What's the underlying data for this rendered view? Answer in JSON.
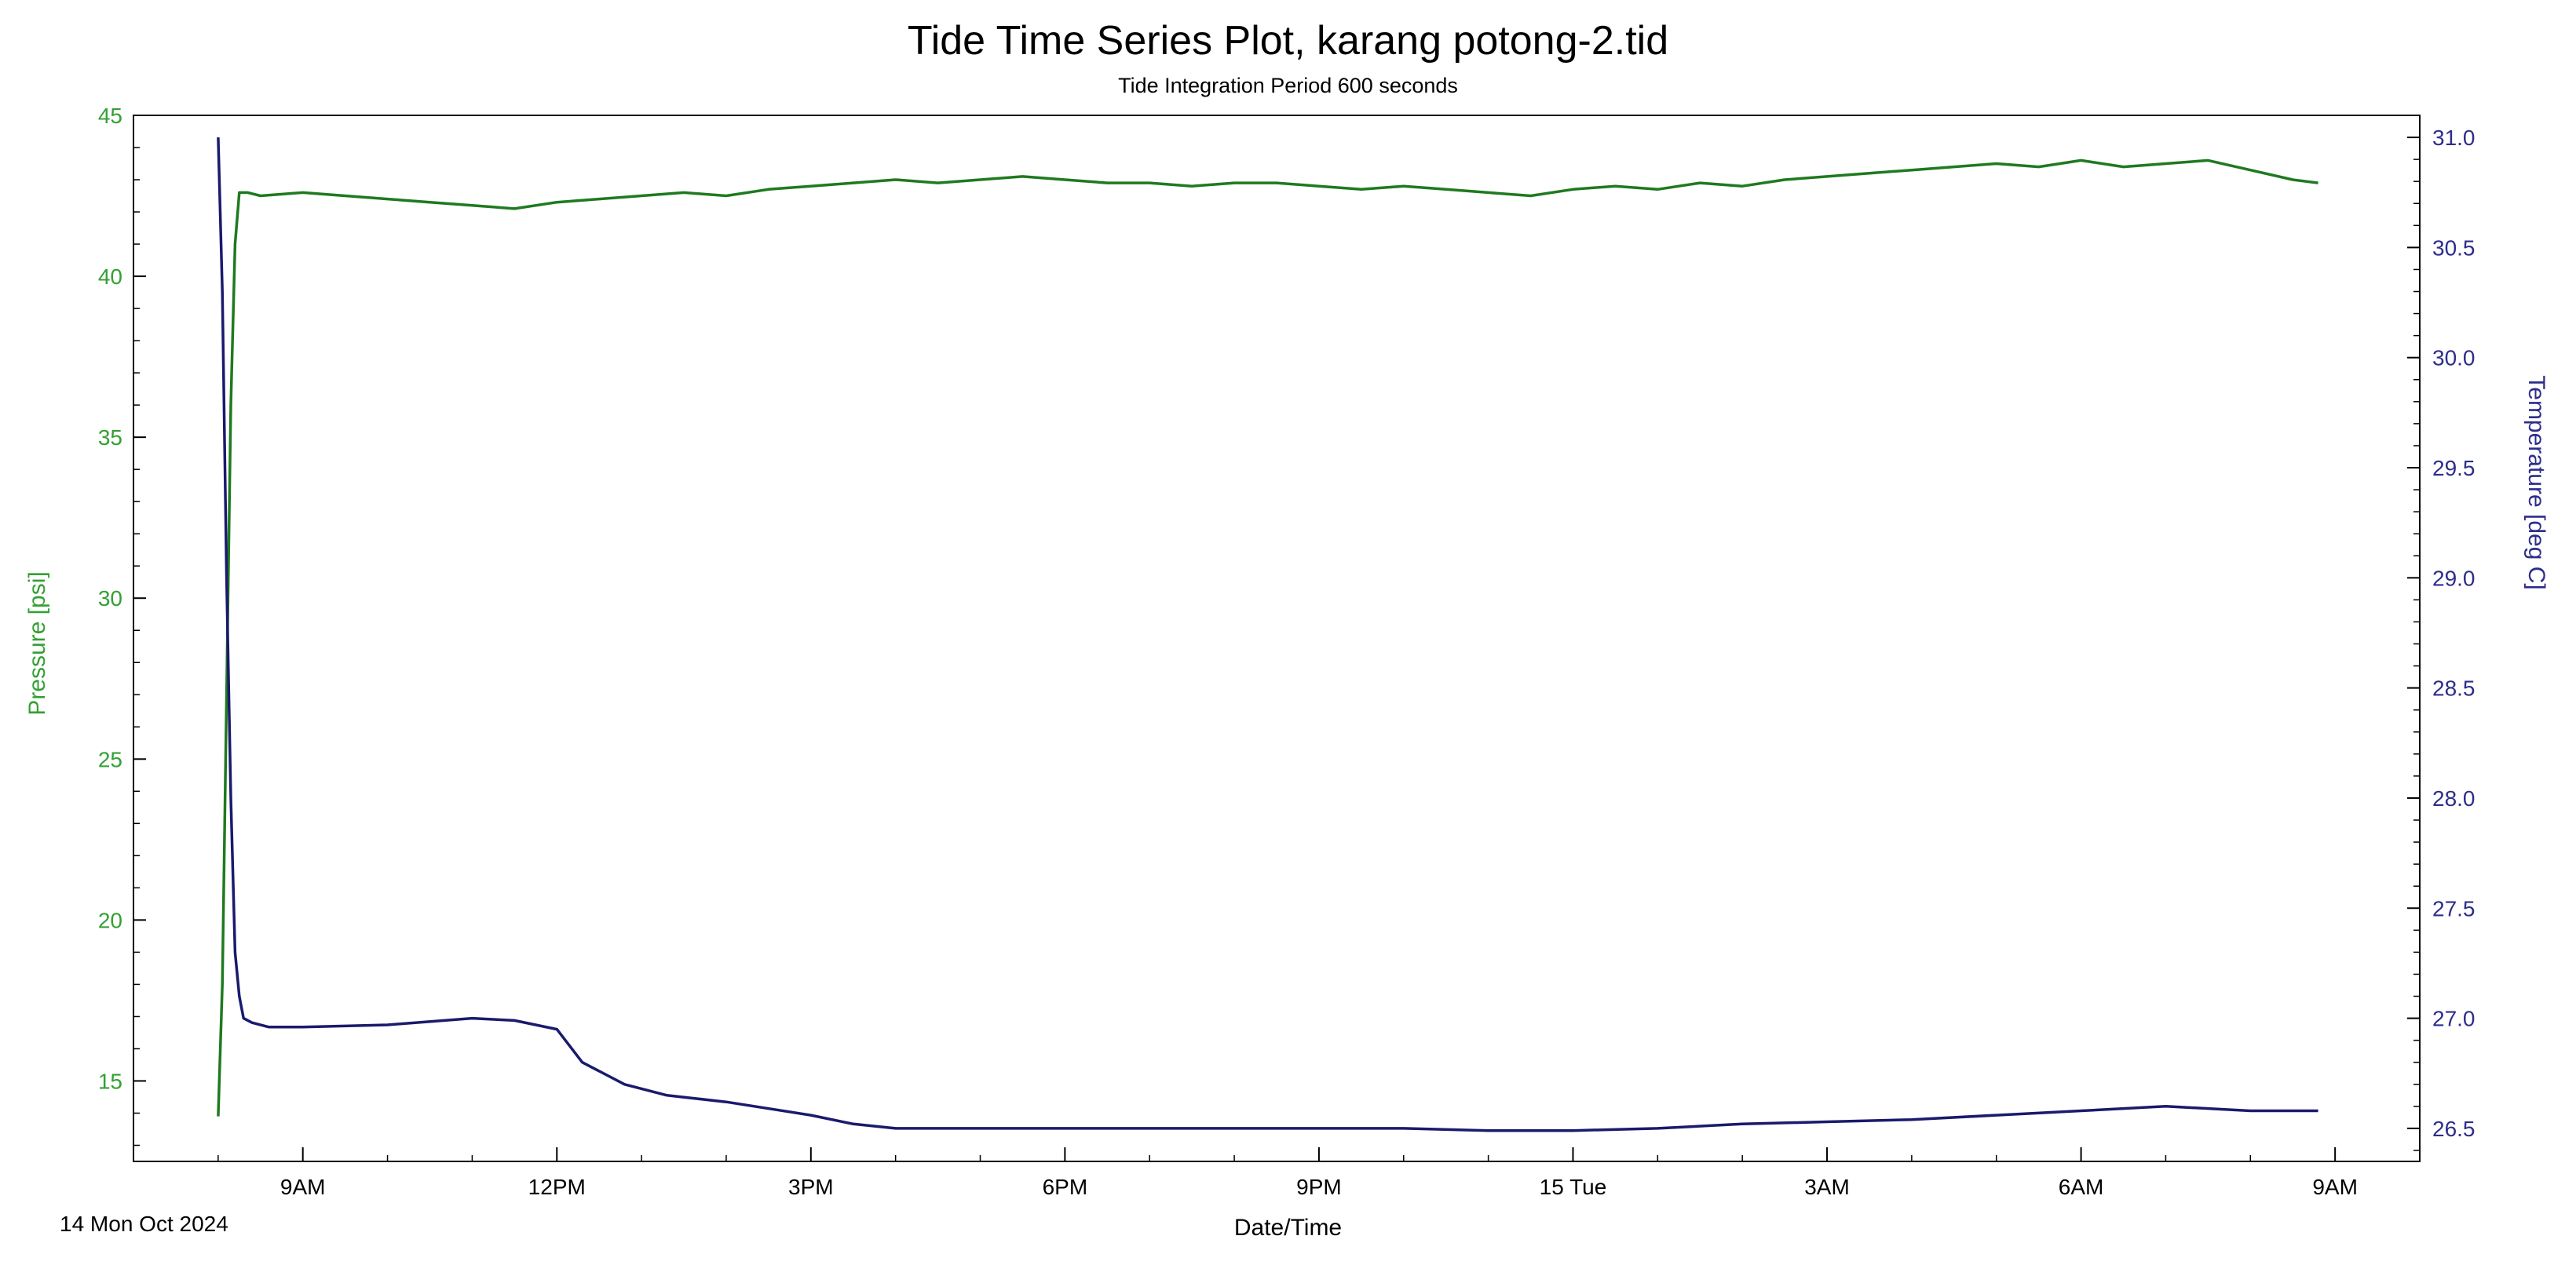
{
  "chart_data": {
    "type": "line",
    "title": "Tide Time Series Plot, karang potong-2.tid",
    "subtitle": "Tide Integration Period 600 seconds",
    "xlabel": "Date/Time",
    "date_label": "14 Mon Oct 2024",
    "x_ticks": [
      "9AM",
      "12PM",
      "3PM",
      "6PM",
      "9PM",
      "15 Tue",
      "3AM",
      "6AM",
      "9AM"
    ],
    "x_tick_hours": [
      9,
      12,
      15,
      18,
      21,
      24,
      27,
      30,
      33
    ],
    "xlim": [
      7.0,
      34.0
    ],
    "x_unit": "hours since 00:00, 14 Oct 2024",
    "left_axis": {
      "label": "Pressure [psi]",
      "ylim": [
        12.5,
        45
      ],
      "ticks": [
        15,
        20,
        25,
        30,
        35,
        40,
        45
      ],
      "color": "#1f7a1f",
      "label_color": "#33a033"
    },
    "right_axis": {
      "label": "Temperature [deg C]",
      "ylim": [
        26.35,
        31.1
      ],
      "ticks": [
        26.5,
        27.0,
        27.5,
        28.0,
        28.5,
        29.0,
        29.5,
        30.0,
        30.5,
        31.0
      ],
      "tick_labels": [
        "26.5",
        "27.0",
        "27.5",
        "28.0",
        "28.5",
        "29.0",
        "29.5",
        "30.0",
        "30.5",
        "31.0"
      ],
      "color": "#1a1a6e",
      "label_color": "#2d2d8c"
    },
    "series": [
      {
        "axis": "left",
        "color": "#1f7a1f",
        "x": [
          8.0,
          8.05,
          8.1,
          8.15,
          8.2,
          8.25,
          8.35,
          8.5,
          9,
          9.5,
          10,
          10.5,
          11,
          11.5,
          12,
          12.5,
          13,
          13.5,
          14,
          14.5,
          15,
          15.5,
          16,
          16.5,
          17,
          17.5,
          18,
          18.5,
          19,
          19.5,
          20,
          20.5,
          21,
          21.5,
          22,
          22.5,
          23,
          23.5,
          24,
          24.5,
          25,
          25.5,
          26,
          26.5,
          27,
          27.5,
          28,
          28.5,
          29,
          29.5,
          30,
          30.5,
          31,
          31.5,
          32,
          32.5,
          32.8
        ],
        "values": [
          13.9,
          18.0,
          27.0,
          36.0,
          41.0,
          42.6,
          42.6,
          42.5,
          42.6,
          42.5,
          42.4,
          42.3,
          42.2,
          42.1,
          42.3,
          42.4,
          42.5,
          42.6,
          42.5,
          42.7,
          42.8,
          42.9,
          43.0,
          42.9,
          43.0,
          43.1,
          43.0,
          42.9,
          42.9,
          42.8,
          42.9,
          42.9,
          42.8,
          42.7,
          42.8,
          42.7,
          42.6,
          42.5,
          42.7,
          42.8,
          42.7,
          42.9,
          42.8,
          43.0,
          43.1,
          43.2,
          43.3,
          43.4,
          43.5,
          43.4,
          43.6,
          43.4,
          43.5,
          43.6,
          43.3,
          43.0,
          42.9
        ]
      },
      {
        "axis": "right",
        "color": "#1a1a6e",
        "x": [
          8.0,
          8.05,
          8.1,
          8.15,
          8.2,
          8.25,
          8.3,
          8.4,
          8.6,
          9,
          10,
          11,
          11.5,
          12,
          12.3,
          12.8,
          13.3,
          14,
          15,
          15.5,
          16,
          17,
          18,
          19,
          20,
          21,
          22,
          23,
          24,
          25,
          26,
          27,
          28,
          29,
          30,
          31,
          32,
          32.8
        ],
        "values": [
          31.0,
          30.3,
          29.0,
          28.0,
          27.3,
          27.1,
          27.0,
          26.98,
          26.96,
          26.96,
          26.97,
          27.0,
          26.99,
          26.95,
          26.8,
          26.7,
          26.65,
          26.62,
          26.56,
          26.52,
          26.5,
          26.5,
          26.5,
          26.5,
          26.5,
          26.5,
          26.5,
          26.49,
          26.49,
          26.5,
          26.52,
          26.53,
          26.54,
          26.56,
          26.58,
          26.6,
          26.58,
          26.58
        ]
      }
    ]
  }
}
